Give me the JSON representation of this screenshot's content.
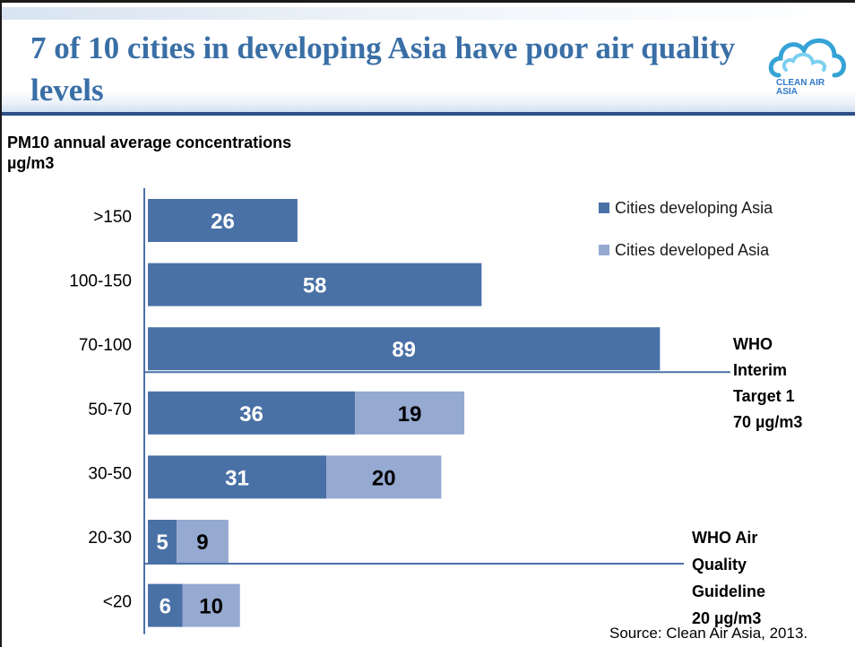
{
  "slide": {
    "title": "7 of 10 cities in developing Asia have poor air quality levels",
    "source": "Source: Clean Air Asia, 2013.",
    "logo": {
      "text_line1": "CLEAN AIR",
      "text_line2": "ASIA",
      "icon": "cloud-logo-icon"
    }
  },
  "chart_data": {
    "type": "bar",
    "orientation": "horizontal",
    "stacked": true,
    "title": "7 of 10 cities in developing Asia have poor air quality levels",
    "ylabel": "PM10 annual average concentrations µg/m3",
    "xlabel": "",
    "categories": [
      ">150",
      "100-150",
      "70-100",
      "50-70",
      "30-50",
      "20-30",
      "<20"
    ],
    "series": [
      {
        "name": "Cities developing Asia",
        "color": "#4a71a6",
        "values": [
          26,
          58,
          89,
          36,
          31,
          5,
          6
        ]
      },
      {
        "name": "Cities developed Asia",
        "color": "#95a9d1",
        "values": [
          null,
          null,
          null,
          19,
          20,
          9,
          10
        ]
      }
    ],
    "xlim": [
      0,
      92
    ],
    "legend_position": "top-right",
    "grid": false,
    "annotations": [
      {
        "lines": [
          "WHO",
          "Interim",
          "Target 1",
          "70 µg/m3"
        ],
        "between": [
          "70-100",
          "50-70"
        ]
      },
      {
        "lines": [
          "WHO Air",
          "Quality",
          "Guideline",
          "20 µg/m3"
        ],
        "between": [
          "20-30",
          "<20"
        ]
      }
    ]
  }
}
